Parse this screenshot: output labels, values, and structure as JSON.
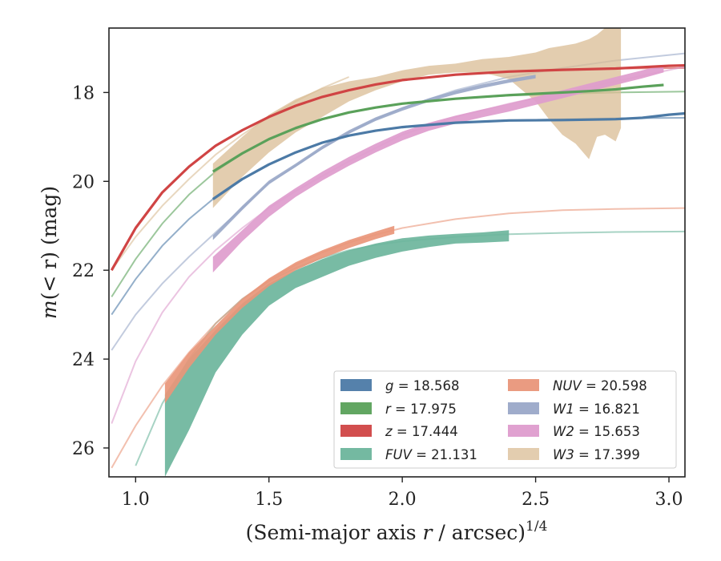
{
  "chart_data": {
    "type": "line",
    "xlabel_main": "(Semi-major axis ",
    "xlabel_var": "r",
    "xlabel_unit": " / arcsec)",
    "xlabel_exp": "1/4",
    "ylabel_main": "m",
    "ylabel_args": "(< r)",
    "ylabel_unit": " (mag)",
    "xlim": [
      0.9,
      3.06
    ],
    "ylim": [
      16.55,
      26.65
    ],
    "y_inverted": true,
    "xticks": [
      1.0,
      1.5,
      2.0,
      2.5,
      3.0
    ],
    "xtick_labels": [
      "1.0",
      "1.5",
      "2.0",
      "2.5",
      "3.0"
    ],
    "yticks": [
      18,
      20,
      22,
      24,
      26
    ],
    "ytick_labels": [
      "18",
      "20",
      "22",
      "24",
      "26"
    ],
    "grid": false,
    "legend_position": "lower-right",
    "series": [
      {
        "name": "g = 18.568",
        "band": "g",
        "mag": "18.568",
        "color": "#4c7aa6",
        "model_x": [
          0.91,
          1.0,
          1.1,
          1.2,
          1.3,
          1.4,
          1.5,
          1.6,
          1.7,
          1.8,
          1.9,
          2.0,
          2.2,
          2.4,
          2.6,
          2.8,
          3.06
        ],
        "model_y": [
          23.0,
          22.2,
          21.45,
          20.85,
          20.35,
          19.95,
          19.62,
          19.35,
          19.13,
          18.97,
          18.86,
          18.78,
          18.68,
          18.63,
          18.6,
          18.58,
          18.57
        ],
        "data_x": [
          1.29,
          1.4,
          1.5,
          1.6,
          1.7,
          1.8,
          1.9,
          2.0,
          2.2,
          2.4,
          2.6,
          2.8,
          2.9,
          3.0,
          3.06
        ],
        "data_y": [
          20.4,
          19.95,
          19.62,
          19.35,
          19.13,
          18.97,
          18.86,
          18.78,
          18.68,
          18.63,
          18.62,
          18.6,
          18.57,
          18.5,
          18.47
        ],
        "data_err": [
          0.03,
          0.03,
          0.03,
          0.03,
          0.03,
          0.03,
          0.03,
          0.03,
          0.03,
          0.03,
          0.03,
          0.03,
          0.03,
          0.03,
          0.03
        ]
      },
      {
        "name": "r = 17.975",
        "band": "r",
        "mag": "17.975",
        "color": "#5aa15a",
        "model_x": [
          0.91,
          1.0,
          1.1,
          1.2,
          1.3,
          1.4,
          1.5,
          1.6,
          1.7,
          1.8,
          1.9,
          2.0,
          2.2,
          2.4,
          2.6,
          2.8,
          3.06
        ],
        "model_y": [
          22.6,
          21.75,
          20.95,
          20.3,
          19.78,
          19.37,
          19.05,
          18.8,
          18.6,
          18.45,
          18.34,
          18.25,
          18.14,
          18.07,
          18.03,
          18.0,
          17.98
        ],
        "data_x": [
          1.29,
          1.4,
          1.5,
          1.6,
          1.7,
          1.8,
          1.9,
          2.0,
          2.2,
          2.4,
          2.6,
          2.7,
          2.8,
          2.9,
          2.98
        ],
        "data_y": [
          19.78,
          19.37,
          19.05,
          18.8,
          18.6,
          18.45,
          18.34,
          18.25,
          18.14,
          18.06,
          18.0,
          17.97,
          17.93,
          17.87,
          17.83
        ],
        "data_err": [
          0.03,
          0.03,
          0.03,
          0.03,
          0.03,
          0.03,
          0.03,
          0.03,
          0.03,
          0.03,
          0.03,
          0.03,
          0.03,
          0.03,
          0.03
        ]
      },
      {
        "name": "z = 17.444",
        "band": "z",
        "mag": "17.444",
        "color": "#d04444",
        "model_x": [
          0.91,
          1.0,
          1.1,
          1.2,
          1.3,
          1.4,
          1.5,
          1.6,
          1.7,
          1.8,
          1.9,
          2.0,
          2.2,
          2.4,
          2.6,
          2.8,
          3.06
        ],
        "model_y": [
          22.0,
          21.05,
          20.25,
          19.67,
          19.2,
          18.85,
          18.55,
          18.3,
          18.1,
          17.95,
          17.82,
          17.72,
          17.6,
          17.53,
          17.49,
          17.46,
          17.45
        ],
        "data_x": [
          0.91,
          1.0,
          1.1,
          1.2,
          1.3,
          1.4,
          1.5,
          1.6,
          1.7,
          1.8,
          1.9,
          2.0,
          2.2,
          2.4,
          2.6,
          2.8,
          2.9,
          3.0,
          3.06
        ],
        "data_y": [
          22.0,
          21.05,
          20.25,
          19.67,
          19.2,
          18.85,
          18.55,
          18.3,
          18.1,
          17.95,
          17.82,
          17.72,
          17.6,
          17.53,
          17.49,
          17.46,
          17.43,
          17.4,
          17.39
        ],
        "data_err": [
          0.03,
          0.03,
          0.03,
          0.03,
          0.03,
          0.03,
          0.03,
          0.03,
          0.03,
          0.03,
          0.03,
          0.03,
          0.03,
          0.03,
          0.03,
          0.03,
          0.03,
          0.03,
          0.03
        ]
      },
      {
        "name": "FUV = 21.131",
        "band": "FUV",
        "mag": "21.131",
        "color": "#6db59c",
        "model_x": [
          1.0,
          1.1,
          1.2,
          1.3,
          1.4,
          1.5,
          1.6,
          1.7,
          1.8,
          1.9,
          2.0,
          2.2,
          2.4,
          2.6,
          2.8,
          3.06
        ],
        "model_y": [
          26.4,
          25.0,
          24.0,
          23.2,
          22.65,
          22.25,
          21.95,
          21.72,
          21.55,
          21.43,
          21.35,
          21.25,
          21.19,
          21.16,
          21.14,
          21.13
        ],
        "band_x": [
          1.11,
          1.2,
          1.3,
          1.4,
          1.5,
          1.6,
          1.7,
          1.8,
          1.9,
          2.0,
          2.1,
          2.2,
          2.3,
          2.4
        ],
        "band_lo": [
          24.8,
          24.0,
          23.35,
          22.75,
          22.3,
          22.0,
          21.75,
          21.55,
          21.4,
          21.28,
          21.22,
          21.18,
          21.15,
          21.1
        ],
        "band_hi": [
          26.65,
          25.6,
          24.3,
          23.45,
          22.8,
          22.4,
          22.15,
          21.9,
          21.72,
          21.58,
          21.48,
          21.4,
          21.38,
          21.35
        ]
      },
      {
        "name": "NUV = 20.598",
        "band": "NUV",
        "mag": "20.598",
        "color": "#e9967a",
        "model_x": [
          0.91,
          1.0,
          1.1,
          1.2,
          1.3,
          1.4,
          1.5,
          1.6,
          1.7,
          1.8,
          1.9,
          2.0,
          2.2,
          2.4,
          2.6,
          2.8,
          3.06
        ],
        "model_y": [
          26.45,
          25.5,
          24.6,
          23.85,
          23.2,
          22.65,
          22.22,
          21.88,
          21.6,
          21.38,
          21.2,
          21.05,
          20.85,
          20.72,
          20.65,
          20.62,
          20.6
        ],
        "band_x": [
          1.11,
          1.2,
          1.3,
          1.4,
          1.5,
          1.6,
          1.7,
          1.8,
          1.9,
          1.97
        ],
        "band_lo": [
          24.55,
          23.85,
          23.25,
          22.65,
          22.18,
          21.82,
          21.55,
          21.32,
          21.13,
          21.0
        ],
        "band_hi": [
          25.0,
          24.2,
          23.45,
          22.85,
          22.36,
          22.0,
          21.73,
          21.5,
          21.3,
          21.18
        ]
      },
      {
        "name": "W1 = 16.821",
        "band": "W1",
        "mag": "16.821",
        "color": "#9aa8c8",
        "model_x": [
          0.91,
          1.0,
          1.1,
          1.2,
          1.3,
          1.4,
          1.5,
          1.6,
          1.7,
          1.8,
          1.9,
          2.0,
          2.2,
          2.4,
          2.6,
          2.8,
          3.06
        ],
        "model_y": [
          23.8,
          23.0,
          22.3,
          21.7,
          21.15,
          20.6,
          20.05,
          19.65,
          19.25,
          18.9,
          18.6,
          18.35,
          17.95,
          17.65,
          17.45,
          17.28,
          17.12
        ],
        "band_x": [
          1.29,
          1.4,
          1.5,
          1.6,
          1.7,
          1.8,
          1.9,
          2.0,
          2.1,
          2.2,
          2.3,
          2.4,
          2.5
        ],
        "band_lo": [
          21.22,
          20.55,
          19.98,
          19.6,
          19.2,
          18.85,
          18.56,
          18.33,
          18.13,
          17.96,
          17.82,
          17.7,
          17.6
        ],
        "band_hi": [
          21.32,
          20.65,
          20.06,
          19.68,
          19.28,
          18.93,
          18.64,
          18.41,
          18.21,
          18.04,
          17.9,
          17.78,
          17.68
        ]
      },
      {
        "name": "W2 = 15.653",
        "band": "W2",
        "mag": "15.653",
        "color": "#de9ccd",
        "model_x": [
          0.91,
          1.0,
          1.1,
          1.2,
          1.3,
          1.4,
          1.5,
          1.6,
          1.7,
          1.8,
          1.9,
          2.0,
          2.2,
          2.4,
          2.6,
          2.8,
          3.06
        ],
        "model_y": [
          25.45,
          24.05,
          22.95,
          22.15,
          21.55,
          21.05,
          20.6,
          20.22,
          19.88,
          19.55,
          19.25,
          18.95,
          18.55,
          18.25,
          18.0,
          17.75,
          17.42
        ],
        "band_x": [
          1.29,
          1.4,
          1.5,
          1.6,
          1.7,
          1.8,
          1.9,
          2.0,
          2.1,
          2.2,
          2.3,
          2.4,
          2.5,
          2.6,
          2.7,
          2.8,
          2.9,
          2.98
        ],
        "band_lo": [
          21.7,
          21.1,
          20.55,
          20.15,
          19.78,
          19.45,
          19.15,
          18.88,
          18.68,
          18.52,
          18.38,
          18.25,
          18.1,
          17.95,
          17.8,
          17.65,
          17.5,
          17.38
        ],
        "band_hi": [
          22.05,
          21.35,
          20.8,
          20.35,
          19.98,
          19.65,
          19.35,
          19.08,
          18.86,
          18.7,
          18.56,
          18.43,
          18.28,
          18.13,
          17.98,
          17.83,
          17.68,
          17.55
        ]
      },
      {
        "name": "W3 = 17.399",
        "band": "W3",
        "mag": "17.399",
        "color": "#d9bc94",
        "model_x": [
          0.91,
          1.0,
          1.1,
          1.2,
          1.3,
          1.4,
          1.5,
          1.6,
          1.7,
          1.8
        ],
        "model_y": [
          22.0,
          21.25,
          20.55,
          19.95,
          19.4,
          18.95,
          18.55,
          18.2,
          17.9,
          17.65
        ],
        "band_x": [
          1.29,
          1.4,
          1.5,
          1.6,
          1.7,
          1.8,
          1.9,
          2.0,
          2.1,
          2.2,
          2.3,
          2.4,
          2.45,
          2.5,
          2.55,
          2.6,
          2.65,
          2.7,
          2.73,
          2.76,
          2.8,
          2.82
        ],
        "band_lo": [
          19.6,
          19.0,
          18.5,
          18.15,
          17.9,
          17.75,
          17.65,
          17.5,
          17.4,
          17.35,
          17.25,
          17.2,
          17.15,
          17.1,
          17.0,
          16.95,
          16.9,
          16.8,
          16.7,
          16.55,
          16.55,
          16.55
        ],
        "band_hi": [
          20.6,
          19.9,
          19.35,
          18.9,
          18.55,
          18.2,
          17.95,
          17.75,
          17.6,
          17.55,
          17.55,
          17.7,
          17.95,
          18.2,
          18.6,
          18.95,
          19.15,
          19.5,
          19.0,
          18.95,
          19.1,
          18.8
        ]
      }
    ]
  }
}
